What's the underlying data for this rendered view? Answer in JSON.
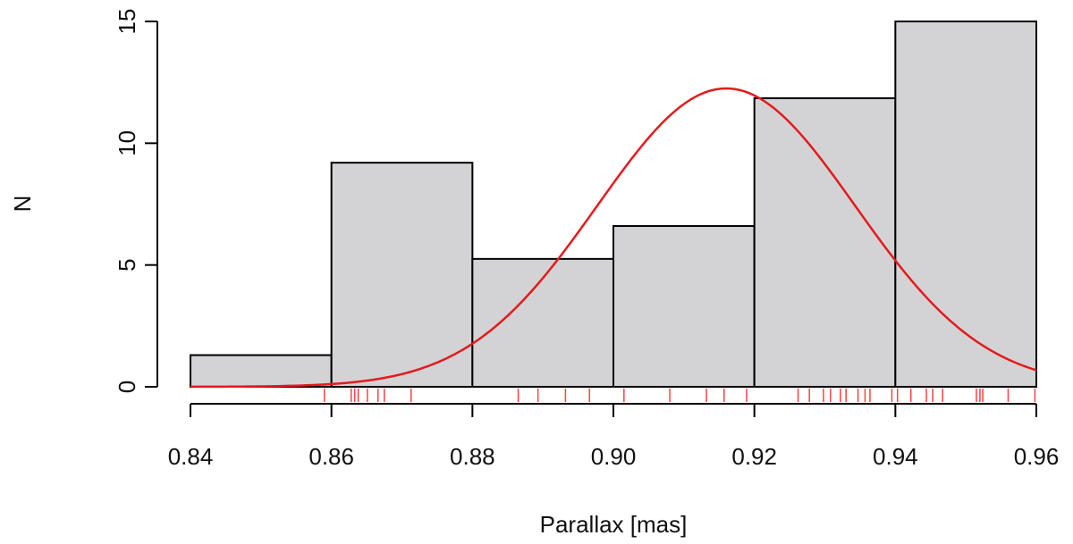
{
  "chart_data": {
    "type": "bar",
    "subtype": "histogram",
    "xlabel": "Parallax [mas]",
    "ylabel": "N",
    "xlim": [
      0.84,
      0.96
    ],
    "ylim": [
      0,
      15
    ],
    "x_ticks": [
      "0.84",
      "0.86",
      "0.88",
      "0.90",
      "0.92",
      "0.94",
      "0.96"
    ],
    "y_ticks": [
      "0",
      "5",
      "10",
      "15"
    ],
    "bins": [
      {
        "start": 0.84,
        "end": 0.86,
        "value": 1.3
      },
      {
        "start": 0.86,
        "end": 0.88,
        "value": 9.2
      },
      {
        "start": 0.88,
        "end": 0.9,
        "value": 5.25
      },
      {
        "start": 0.9,
        "end": 0.92,
        "value": 6.6
      },
      {
        "start": 0.92,
        "end": 0.94,
        "value": 11.85
      },
      {
        "start": 0.94,
        "end": 0.96,
        "value": 15.0
      }
    ],
    "curve": {
      "type": "gaussian",
      "mean": 0.916,
      "peak": 12.25,
      "sigma": 0.0183,
      "color": "#e41a1c"
    },
    "rug": [
      0.859,
      0.8628,
      0.8633,
      0.8638,
      0.8651,
      0.8666,
      0.8675,
      0.8713,
      0.8865,
      0.8893,
      0.8932,
      0.8966,
      0.9015,
      0.908,
      0.9132,
      0.9157,
      0.9189,
      0.9262,
      0.9278,
      0.9298,
      0.9308,
      0.9322,
      0.933,
      0.9347,
      0.9357,
      0.9364,
      0.9395,
      0.9403,
      0.9422,
      0.9444,
      0.9453,
      0.9467,
      0.9515,
      0.952,
      0.9524,
      0.956,
      0.9598
    ],
    "bar_color": "#d3d3d5",
    "rug_color": "#ff4040",
    "grid": false,
    "legend": "none"
  }
}
